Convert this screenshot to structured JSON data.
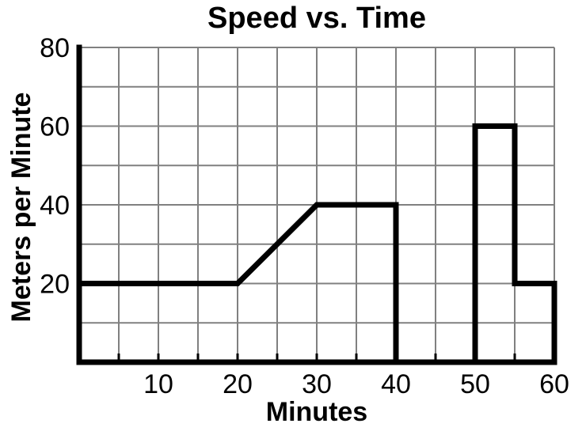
{
  "chart_data": {
    "type": "line",
    "title": "Speed vs. Time",
    "xlabel": "Minutes",
    "ylabel": "Meters per Minute",
    "xlim": [
      0,
      60
    ],
    "ylim": [
      0,
      80
    ],
    "x_grid_step": 5,
    "y_grid_step": 10,
    "x_tick_labels": [
      10,
      20,
      30,
      40,
      50,
      60
    ],
    "y_tick_labels": [
      20,
      40,
      60,
      80
    ],
    "grid": true,
    "legend": false,
    "points": [
      [
        0,
        20
      ],
      [
        20,
        20
      ],
      [
        30,
        40
      ],
      [
        40,
        40
      ],
      [
        40,
        0
      ],
      [
        50,
        0
      ],
      [
        50,
        60
      ],
      [
        55,
        60
      ],
      [
        55,
        20
      ],
      [
        60,
        20
      ],
      [
        60,
        0
      ]
    ],
    "colors": {
      "line": "#000000",
      "axis": "#000000",
      "grid": "#808080",
      "background": "#ffffff",
      "text": "#000000"
    }
  }
}
